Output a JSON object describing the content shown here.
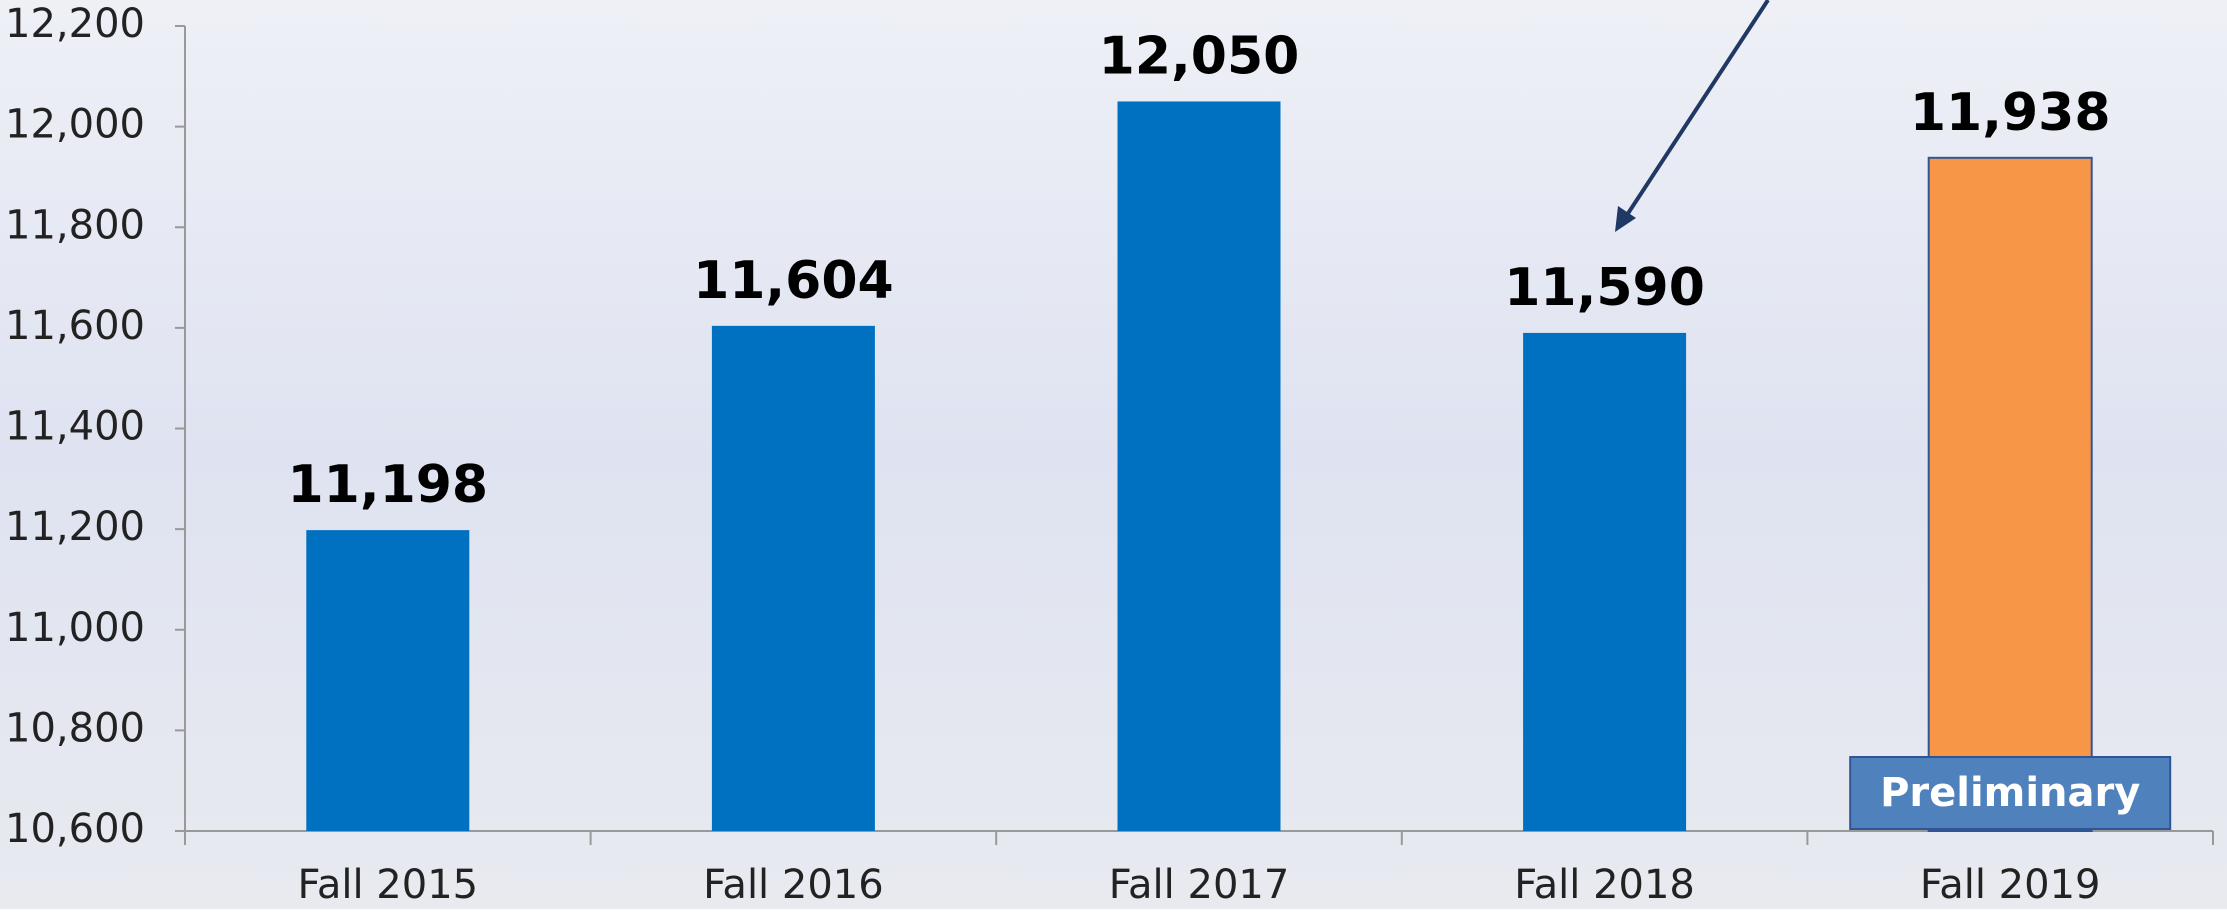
{
  "chart_data": {
    "type": "bar",
    "categories": [
      "Fall 2015",
      "Fall 2016",
      "Fall 2017",
      "Fall 2018",
      "Fall 2019"
    ],
    "values": [
      11198,
      11604,
      12050,
      11590,
      11938
    ],
    "value_labels": [
      "11,198",
      "11,604",
      "12,050",
      "11,590",
      "11,938"
    ],
    "colors": [
      "#0070c0",
      "#0070c0",
      "#0070c0",
      "#0070c0",
      "#f79646"
    ],
    "ylim": [
      10600,
      12200
    ],
    "yticks": [
      {
        "value": 10600,
        "label": "10,600"
      },
      {
        "value": 10800,
        "label": "10,800"
      },
      {
        "value": 11000,
        "label": "11,000"
      },
      {
        "value": 11200,
        "label": "11,200"
      },
      {
        "value": 11400,
        "label": "11,400"
      },
      {
        "value": 11600,
        "label": "11,600"
      },
      {
        "value": 11800,
        "label": "11,800"
      },
      {
        "value": 12000,
        "label": "12,000"
      },
      {
        "value": 12200,
        "label": "12,200"
      }
    ],
    "annotation": "Preliminary"
  }
}
